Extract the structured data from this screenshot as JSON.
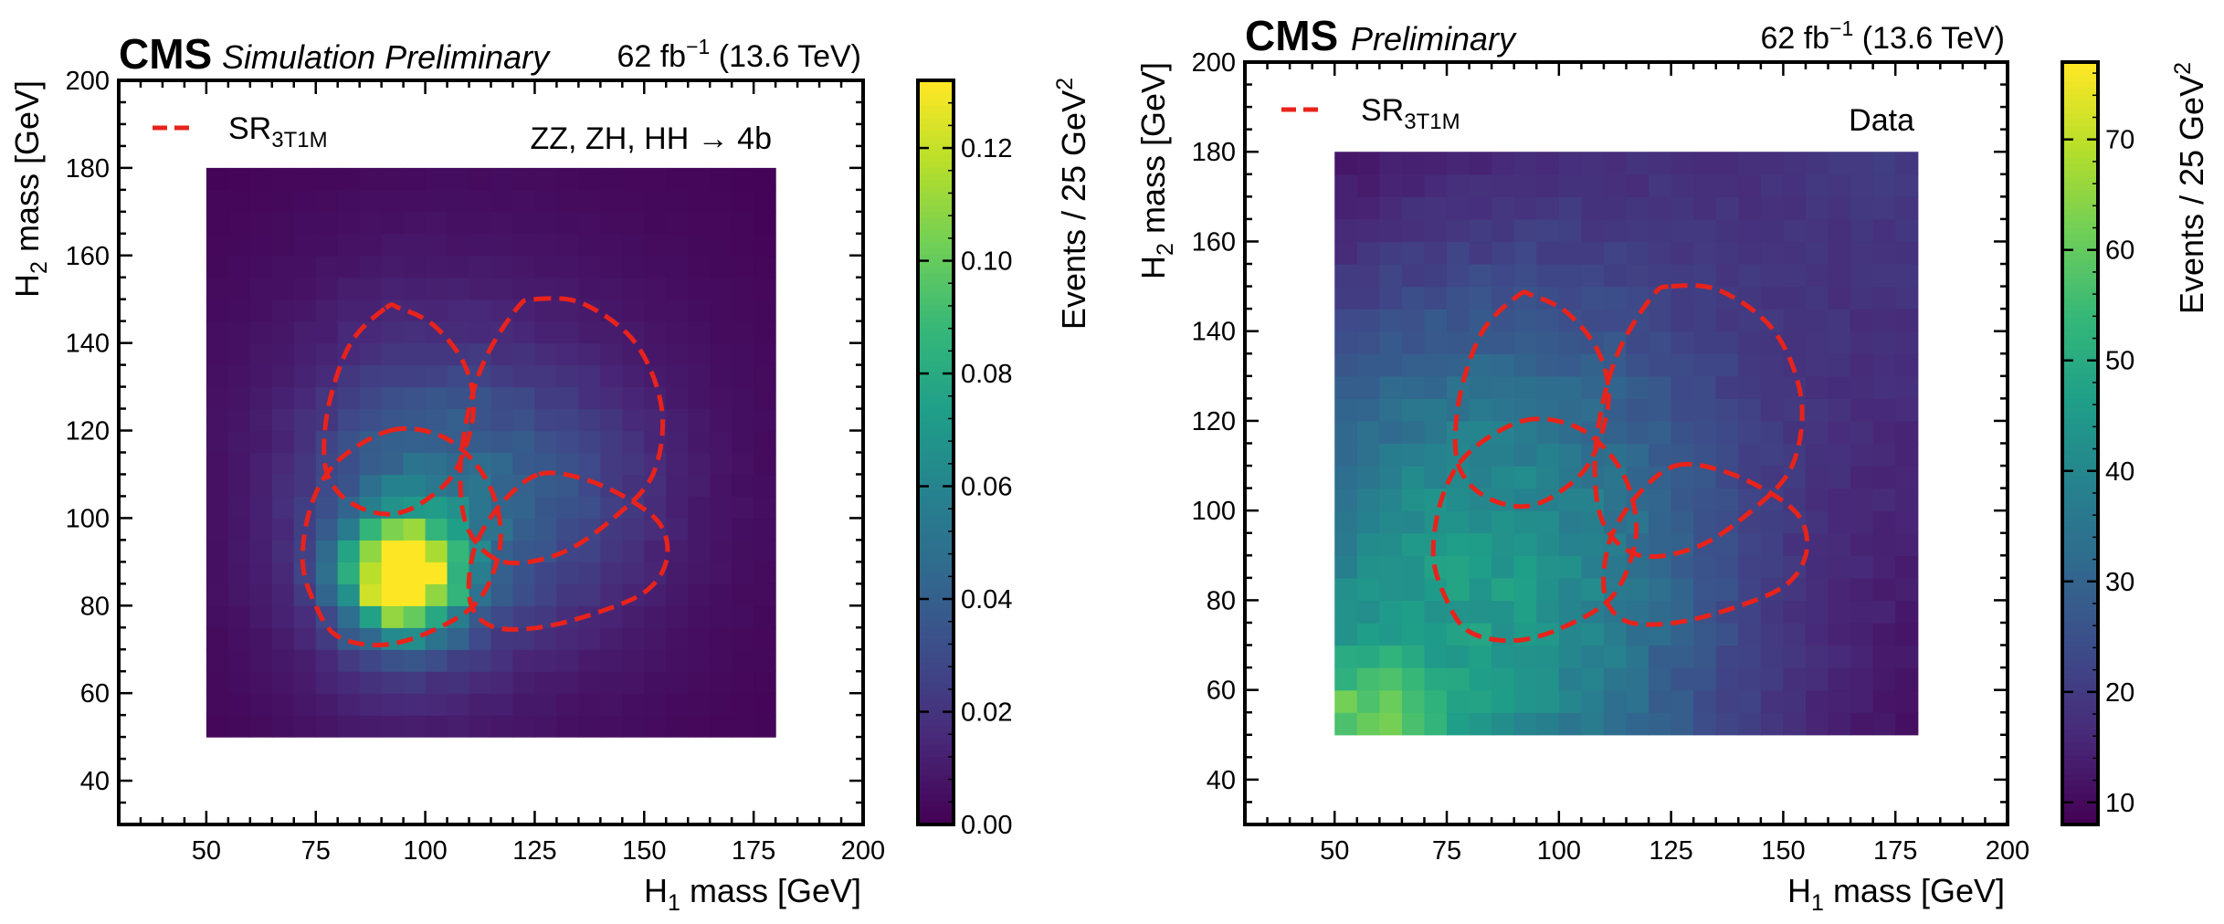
{
  "chart_data": [
    {
      "type": "heatmap",
      "experiment": "CMS",
      "label": "Simulation Preliminary",
      "lumi": "62 fb",
      "lumi_sup": "−1",
      "energy": "(13.6 TeV)",
      "process": "ZZ, ZH, HH",
      "process_arrow": "→",
      "process_final": "4b",
      "legend": {
        "prefix": "SR",
        "subscript": "3T1M",
        "placement": "top-left"
      },
      "xlabel": {
        "base": "H",
        "sub": "1",
        "rest": " mass [GeV]"
      },
      "ylabel": {
        "base": "H",
        "sub": "2",
        "rest": " mass [GeV]"
      },
      "xlim": [
        30,
        200
      ],
      "ylim": [
        30,
        200
      ],
      "xticks": [
        "50",
        "75",
        "100",
        "125",
        "150",
        "175",
        "200"
      ],
      "yticks": [
        "40",
        "60",
        "80",
        "100",
        "120",
        "140",
        "160",
        "180",
        "200"
      ],
      "colorbar": {
        "label": "Events / 25 GeV",
        "label_sup": "2",
        "min": 0,
        "max": 0.132,
        "ticks": [
          "0.00",
          "0.02",
          "0.04",
          "0.06",
          "0.08",
          "0.10",
          "0.12"
        ]
      },
      "hist": {
        "x_range": [
          50,
          180
        ],
        "y_range": [
          50,
          180
        ],
        "nbins": 26,
        "model": "signal",
        "components": [
          {
            "mx": 95,
            "my": 87,
            "sx": 9,
            "sy": 9,
            "amp": 0.128
          },
          {
            "mx": 95,
            "my": 100,
            "sx": 17,
            "sy": 26,
            "amp": 0.03
          },
          {
            "mx": 125,
            "my": 105,
            "sx": 20,
            "sy": 20,
            "amp": 0.022
          },
          {
            "mx": 110,
            "my": 110,
            "sx": 45,
            "sy": 45,
            "amp": 0.012
          }
        ]
      },
      "signal_regions": [
        {
          "x": [
            91,
            94,
            102,
            109,
            111,
            107,
            100,
            93,
            86,
            80,
            77,
            78,
            83,
            91
          ],
          "y": [
            148,
            148,
            144,
            135,
            124,
            111,
            104,
            101,
            102,
            106,
            113,
            126,
            140,
            148
          ]
        },
        {
          "x": [
            125,
            136,
            148,
            154,
            152,
            143,
            131,
            118,
            110,
            108,
            110,
            114,
            121,
            125
          ],
          "y": [
            150,
            149,
            140,
            125,
            110,
            100,
            92,
            90,
            97,
            110,
            125,
            137,
            148,
            150
          ]
        },
        {
          "x": [
            92,
            103,
            111,
            116,
            117,
            112,
            101,
            90,
            80,
            75,
            72,
            74,
            80,
            92
          ],
          "y": [
            120,
            119,
            113,
            104,
            93,
            81,
            74,
            71,
            73,
            80,
            90,
            103,
            113,
            120
          ]
        },
        {
          "x": [
            126,
            136,
            147,
            154,
            155,
            150,
            138,
            126,
            116,
            111,
            110,
            112,
            118,
            126
          ],
          "y": [
            110,
            109,
            104,
            98,
            90,
            83,
            78,
            75,
            75,
            79,
            86,
            95,
            104,
            110
          ]
        }
      ]
    },
    {
      "type": "heatmap",
      "experiment": "CMS",
      "label": "Preliminary",
      "lumi": "62 fb",
      "lumi_sup": "−1",
      "energy": "(13.6 TeV)",
      "dataset": "Data",
      "legend": {
        "prefix": "SR",
        "subscript": "3T1M",
        "placement": "top-left"
      },
      "xlabel": {
        "base": "H",
        "sub": "1",
        "rest": " mass [GeV]"
      },
      "ylabel": {
        "base": "H",
        "sub": "2",
        "rest": " mass [GeV]"
      },
      "xlim": [
        30,
        200
      ],
      "ylim": [
        30,
        200
      ],
      "xticks": [
        "50",
        "75",
        "100",
        "125",
        "150",
        "175",
        "200"
      ],
      "yticks": [
        "40",
        "60",
        "80",
        "100",
        "120",
        "140",
        "160",
        "180",
        "200"
      ],
      "colorbar": {
        "label": "Events / 25 GeV",
        "label_sup": "2",
        "min": 8,
        "max": 77,
        "ticks": [
          "10",
          "20",
          "30",
          "40",
          "50",
          "60",
          "70"
        ]
      },
      "hist": {
        "x_range": [
          50,
          180
        ],
        "y_range": [
          50,
          180
        ],
        "nbins": 26,
        "model": "data",
        "peak": {
          "mx": 55,
          "my": 52,
          "s": 12,
          "amp": 22
        },
        "base_value": 10
      },
      "signal_regions": [
        {
          "x": [
            91,
            94,
            102,
            109,
            111,
            107,
            100,
            93,
            86,
            80,
            77,
            78,
            83,
            91
          ],
          "y": [
            148,
            148,
            144,
            135,
            124,
            111,
            104,
            101,
            102,
            106,
            113,
            126,
            140,
            148
          ]
        },
        {
          "x": [
            125,
            136,
            148,
            154,
            152,
            143,
            131,
            118,
            110,
            108,
            110,
            114,
            121,
            125
          ],
          "y": [
            150,
            149,
            140,
            125,
            110,
            100,
            92,
            90,
            97,
            110,
            125,
            137,
            148,
            150
          ]
        },
        {
          "x": [
            92,
            103,
            111,
            116,
            117,
            112,
            101,
            90,
            80,
            75,
            72,
            74,
            80,
            92
          ],
          "y": [
            120,
            119,
            113,
            104,
            93,
            81,
            74,
            71,
            73,
            80,
            90,
            103,
            113,
            120
          ]
        },
        {
          "x": [
            126,
            136,
            147,
            154,
            155,
            150,
            138,
            126,
            116,
            111,
            110,
            112,
            118,
            126
          ],
          "y": [
            110,
            109,
            104,
            98,
            90,
            83,
            78,
            75,
            75,
            79,
            86,
            95,
            104,
            110
          ]
        }
      ]
    }
  ],
  "colors": {
    "region_line": "#e8231b",
    "axis": "#000000"
  }
}
